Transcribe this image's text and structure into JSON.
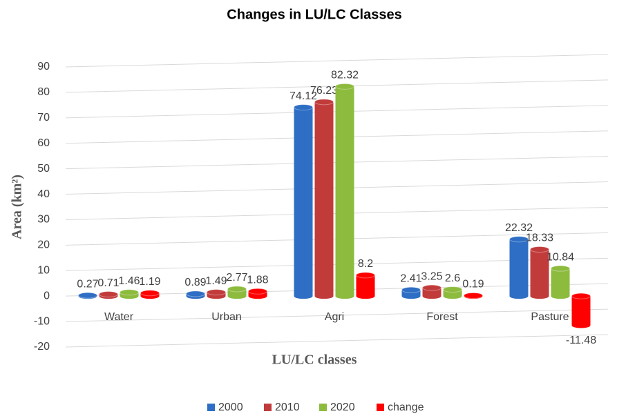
{
  "chart_data": {
    "type": "bar",
    "title": "Changes in LU/LC Classes",
    "x_label": "LU/LC classes",
    "y_label": "Area (km²)",
    "categories": [
      "Water",
      "Urban",
      "Agri",
      "Forest",
      "Pasture"
    ],
    "series": [
      {
        "name": "2000",
        "color": "#2e6ec4",
        "values": [
          0.27,
          0.89,
          74.12,
          2.41,
          22.32
        ]
      },
      {
        "name": "2010",
        "color": "#c23b3b",
        "values": [
          0.71,
          1.49,
          76.23,
          3.25,
          18.33
        ]
      },
      {
        "name": "2020",
        "color": "#8dbb3e",
        "values": [
          1.46,
          2.77,
          82.32,
          2.6,
          10.84
        ]
      },
      {
        "name": "change",
        "color": "#ff0000",
        "values": [
          1.19,
          1.88,
          8.2,
          0.19,
          -11.48
        ]
      }
    ],
    "ylim": [
      -20,
      90
    ],
    "yticks": [
      -20,
      -10,
      0,
      10,
      20,
      30,
      40,
      50,
      60,
      70,
      80,
      90
    ],
    "grid": true,
    "legend": "bottom"
  }
}
